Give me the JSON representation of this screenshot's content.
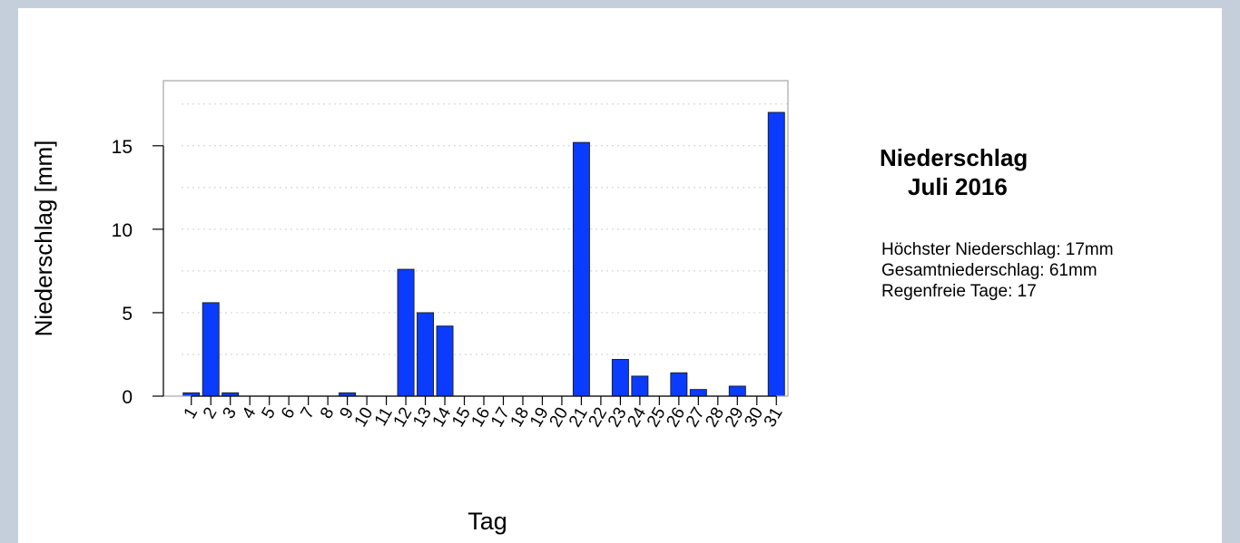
{
  "chart_data": {
    "type": "bar",
    "categories": [
      "1",
      "2",
      "3",
      "4",
      "5",
      "6",
      "7",
      "8",
      "9",
      "10",
      "11",
      "12",
      "13",
      "14",
      "15",
      "16",
      "17",
      "18",
      "19",
      "20",
      "21",
      "22",
      "23",
      "24",
      "25",
      "26",
      "27",
      "28",
      "29",
      "30",
      "31"
    ],
    "values": [
      0.2,
      5.6,
      0.2,
      0,
      0,
      0,
      0,
      0,
      0.2,
      0,
      0,
      7.6,
      5.0,
      4.2,
      0,
      0,
      0,
      0,
      0,
      0,
      15.2,
      0,
      2.2,
      1.2,
      0,
      1.4,
      0.4,
      0,
      0.6,
      0,
      17.0
    ],
    "xlabel": "Tag",
    "ylabel": "Niederschlag [mm]",
    "ylim": [
      0,
      18.9
    ],
    "yticks": [
      0,
      5,
      10,
      15
    ],
    "grid": true,
    "bar_color": "#0a3cff"
  },
  "legend": {
    "title_line1": "Niederschlag",
    "title_line2": "Juli 2016",
    "stats": [
      "Höchster Niederschlag: 17mm",
      "Gesamtniederschlag: 61mm",
      "Regenfreie Tage: 17"
    ]
  }
}
